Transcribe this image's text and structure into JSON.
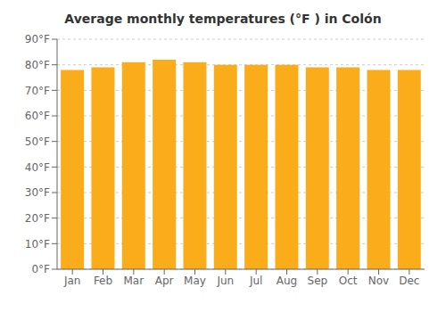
{
  "chart_data": {
    "type": "bar",
    "title": "Average monthly temperatures (°F ) in Colón",
    "categories": [
      "Jan",
      "Feb",
      "Mar",
      "Apr",
      "May",
      "Jun",
      "Jul",
      "Aug",
      "Sep",
      "Oct",
      "Nov",
      "Dec"
    ],
    "values": [
      78,
      79,
      81,
      82,
      81,
      80,
      80,
      80,
      79,
      79,
      78,
      78
    ],
    "color": "#FBAC1B",
    "ylim": [
      0,
      90
    ],
    "yticks": [
      {
        "value": 0,
        "label": "0°F"
      },
      {
        "value": 10,
        "label": "10°F"
      },
      {
        "value": 20,
        "label": "20°F"
      },
      {
        "value": 30,
        "label": "30°F"
      },
      {
        "value": 40,
        "label": "40°F"
      },
      {
        "value": 50,
        "label": "50°F"
      },
      {
        "value": 60,
        "label": "60°F"
      },
      {
        "value": 70,
        "label": "70°F"
      },
      {
        "value": 80,
        "label": "80°F"
      },
      {
        "value": 90,
        "label": "90°F"
      }
    ],
    "grid": true
  }
}
